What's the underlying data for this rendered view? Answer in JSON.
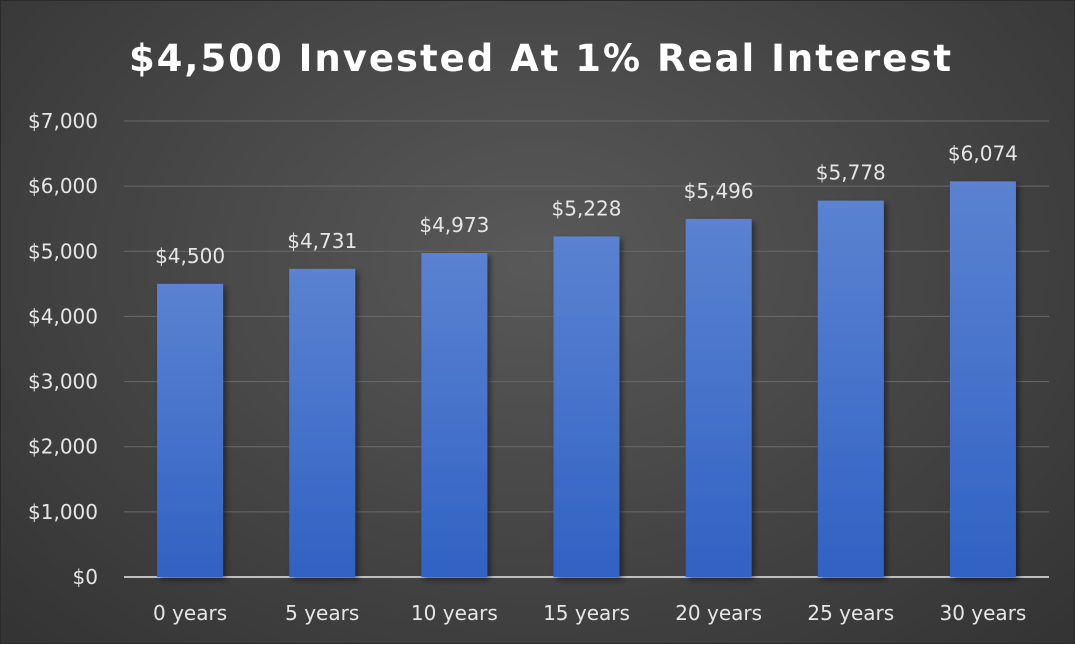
{
  "chart_data": {
    "type": "bar",
    "title": "$4,500 Invested At 1% Real Interest",
    "xlabel": "",
    "ylabel": "",
    "categories": [
      "0 years",
      "5 years",
      "10 years",
      "15 years",
      "20 years",
      "25 years",
      "30 years"
    ],
    "values": [
      4500,
      4731,
      4973,
      5228,
      5496,
      5778,
      6074
    ],
    "data_labels": [
      "$4,500",
      "$4,731",
      "$4,973",
      "$5,228",
      "$5,496",
      "$5,778",
      "$6,074"
    ],
    "ylim": [
      0,
      7000
    ],
    "yticks": [
      0,
      1000,
      2000,
      3000,
      4000,
      5000,
      6000,
      7000
    ],
    "ytick_labels": [
      "$0",
      "$1,000",
      "$2,000",
      "$3,000",
      "$4,000",
      "$5,000",
      "$6,000",
      "$7,000"
    ],
    "grid": true,
    "legend": "none",
    "colors": {
      "bar_top": "#5b82d1",
      "bar_bottom": "#3062c4",
      "background": "#444444",
      "text": "#e6e6e6"
    }
  }
}
